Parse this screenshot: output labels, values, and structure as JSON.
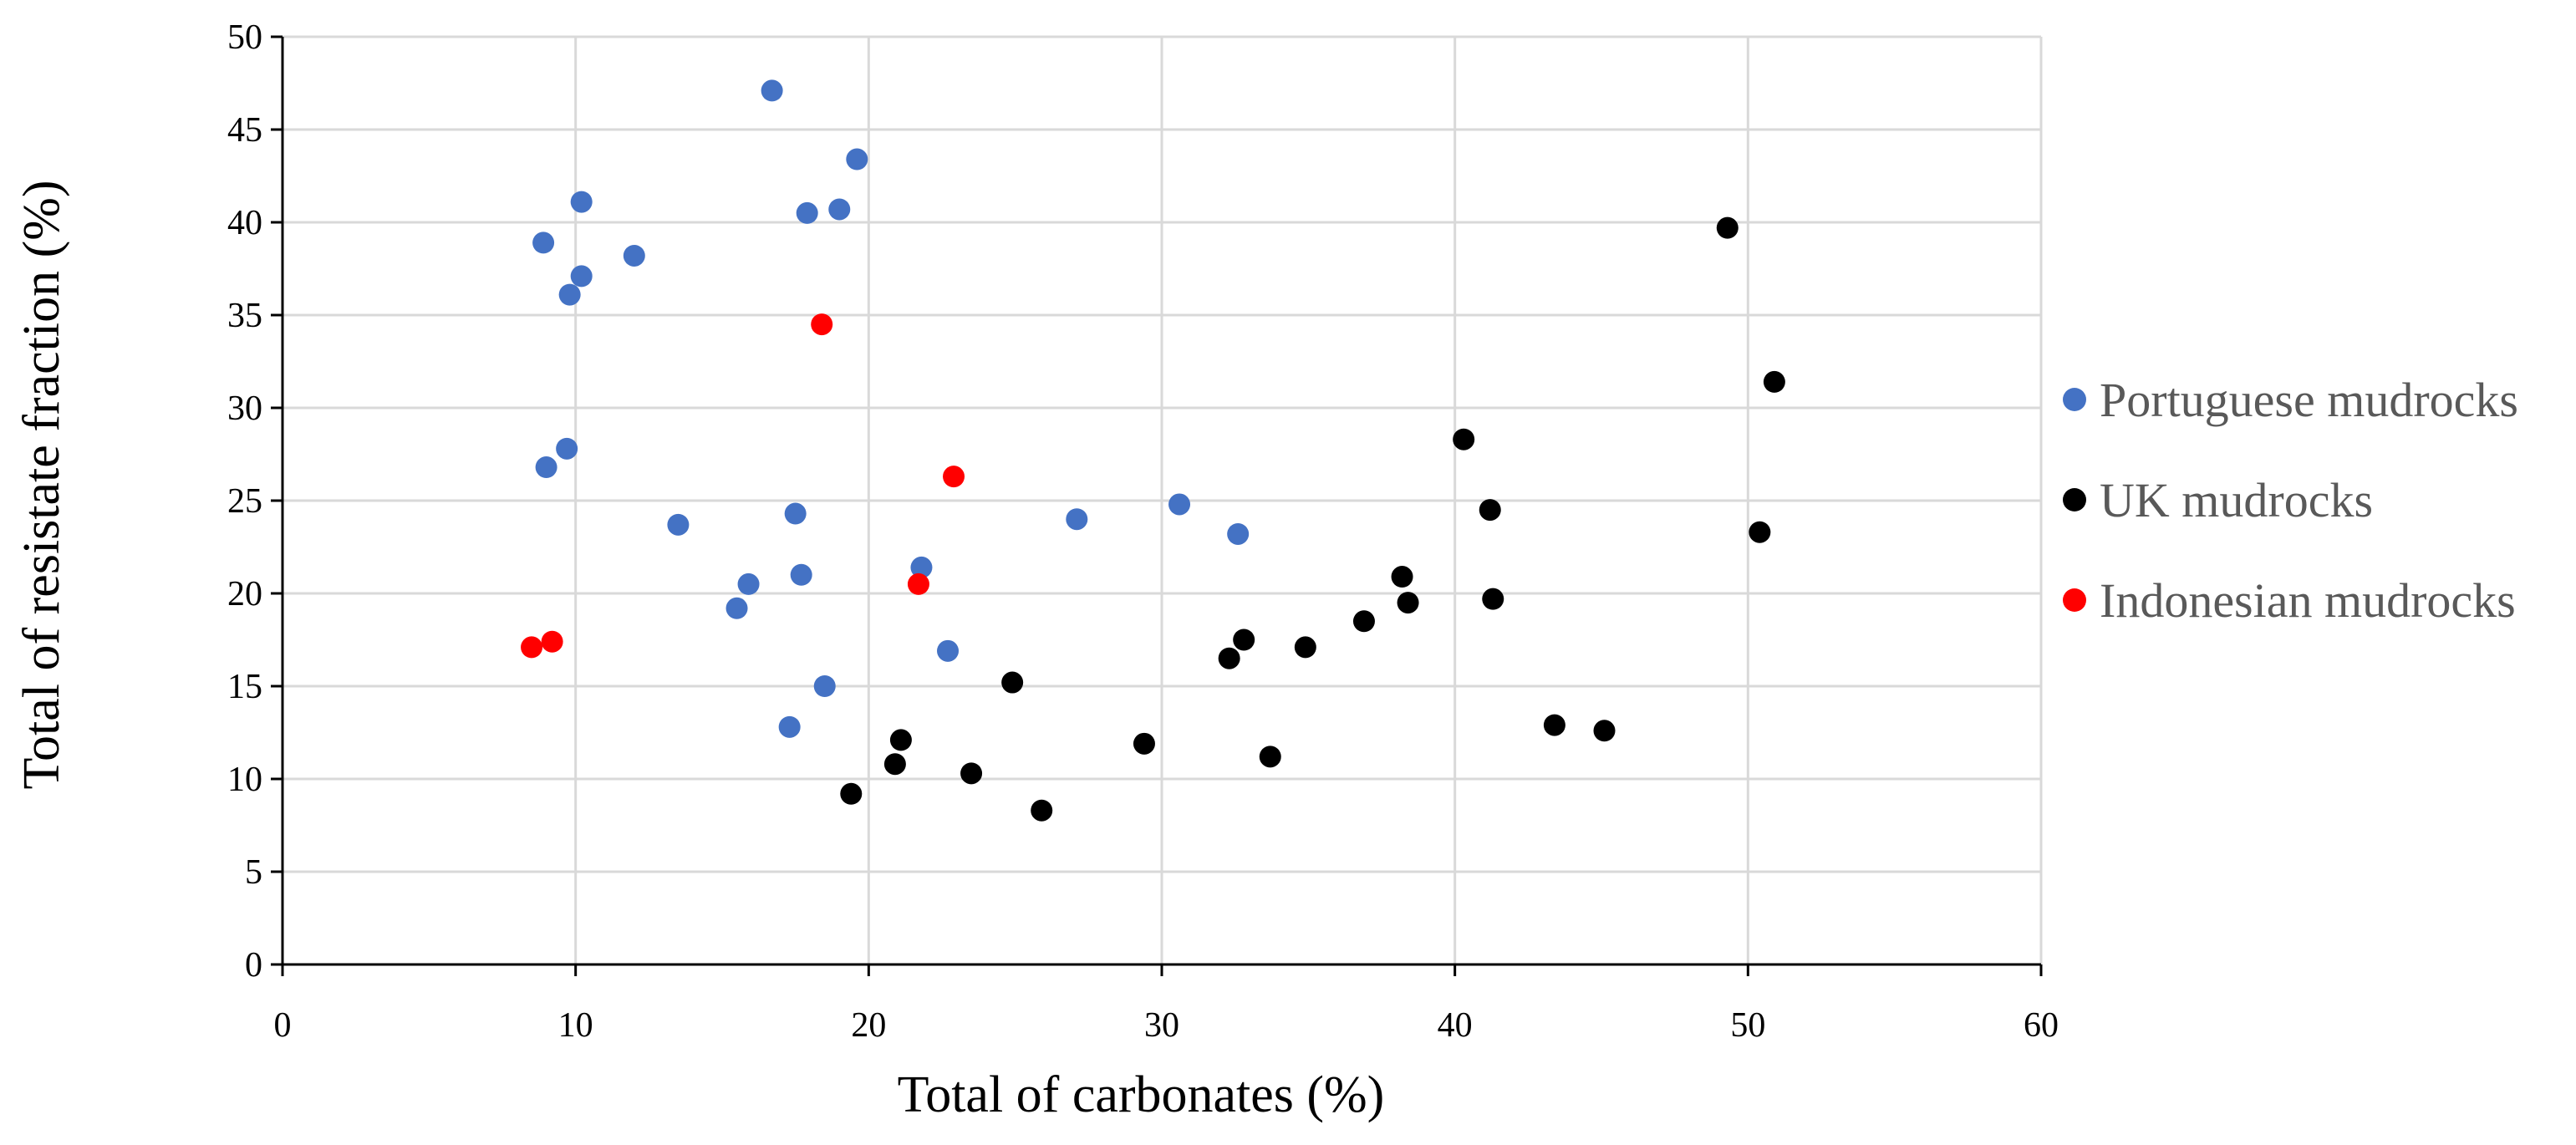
{
  "chart_data": {
    "type": "scatter",
    "title": "",
    "xlabel": "Total of carbonates (%)",
    "ylabel": "Total of resistate fraction (%)",
    "xlim": [
      0,
      60
    ],
    "ylim": [
      0,
      50
    ],
    "x_ticks": [
      0,
      10,
      20,
      30,
      40,
      50,
      60
    ],
    "y_ticks": [
      0,
      5,
      10,
      15,
      20,
      25,
      30,
      35,
      40,
      45,
      50
    ],
    "grid": true,
    "legend_position": "right",
    "series": [
      {
        "name": "Portuguese mudrocks",
        "color": "#4472C4",
        "points": [
          {
            "x": 16.7,
            "y": 47.1
          },
          {
            "x": 19.6,
            "y": 43.4
          },
          {
            "x": 10.2,
            "y": 41.1
          },
          {
            "x": 19.0,
            "y": 40.7
          },
          {
            "x": 17.9,
            "y": 40.5
          },
          {
            "x": 8.9,
            "y": 38.9
          },
          {
            "x": 12.0,
            "y": 38.2
          },
          {
            "x": 10.2,
            "y": 37.1
          },
          {
            "x": 9.8,
            "y": 36.1
          },
          {
            "x": 9.7,
            "y": 27.8
          },
          {
            "x": 9.0,
            "y": 26.8
          },
          {
            "x": 30.6,
            "y": 24.8
          },
          {
            "x": 17.5,
            "y": 24.3
          },
          {
            "x": 27.1,
            "y": 24.0
          },
          {
            "x": 13.5,
            "y": 23.7
          },
          {
            "x": 32.6,
            "y": 23.2
          },
          {
            "x": 21.8,
            "y": 21.4
          },
          {
            "x": 17.7,
            "y": 21.0
          },
          {
            "x": 15.9,
            "y": 20.5
          },
          {
            "x": 15.5,
            "y": 19.2
          },
          {
            "x": 22.7,
            "y": 16.9
          },
          {
            "x": 18.5,
            "y": 15.0
          },
          {
            "x": 17.3,
            "y": 12.8
          }
        ]
      },
      {
        "name": "UK mudrocks",
        "color": "#000000",
        "points": [
          {
            "x": 49.3,
            "y": 39.7
          },
          {
            "x": 50.9,
            "y": 31.4
          },
          {
            "x": 40.3,
            "y": 28.3
          },
          {
            "x": 41.2,
            "y": 24.5
          },
          {
            "x": 50.4,
            "y": 23.3
          },
          {
            "x": 38.2,
            "y": 20.9
          },
          {
            "x": 41.3,
            "y": 19.7
          },
          {
            "x": 38.4,
            "y": 19.5
          },
          {
            "x": 36.9,
            "y": 18.5
          },
          {
            "x": 32.8,
            "y": 17.5
          },
          {
            "x": 34.9,
            "y": 17.1
          },
          {
            "x": 32.3,
            "y": 16.5
          },
          {
            "x": 24.9,
            "y": 15.2
          },
          {
            "x": 43.4,
            "y": 12.9
          },
          {
            "x": 45.1,
            "y": 12.6
          },
          {
            "x": 21.1,
            "y": 12.1
          },
          {
            "x": 29.4,
            "y": 11.9
          },
          {
            "x": 33.7,
            "y": 11.2
          },
          {
            "x": 20.9,
            "y": 10.8
          },
          {
            "x": 23.5,
            "y": 10.3
          },
          {
            "x": 19.4,
            "y": 9.2
          },
          {
            "x": 25.9,
            "y": 8.3
          }
        ]
      },
      {
        "name": "Indonesian mudrocks",
        "color": "#FF0000",
        "points": [
          {
            "x": 18.4,
            "y": 34.5
          },
          {
            "x": 22.9,
            "y": 26.3
          },
          {
            "x": 21.7,
            "y": 20.5
          },
          {
            "x": 9.2,
            "y": 17.4
          },
          {
            "x": 8.5,
            "y": 17.1
          }
        ]
      }
    ]
  }
}
